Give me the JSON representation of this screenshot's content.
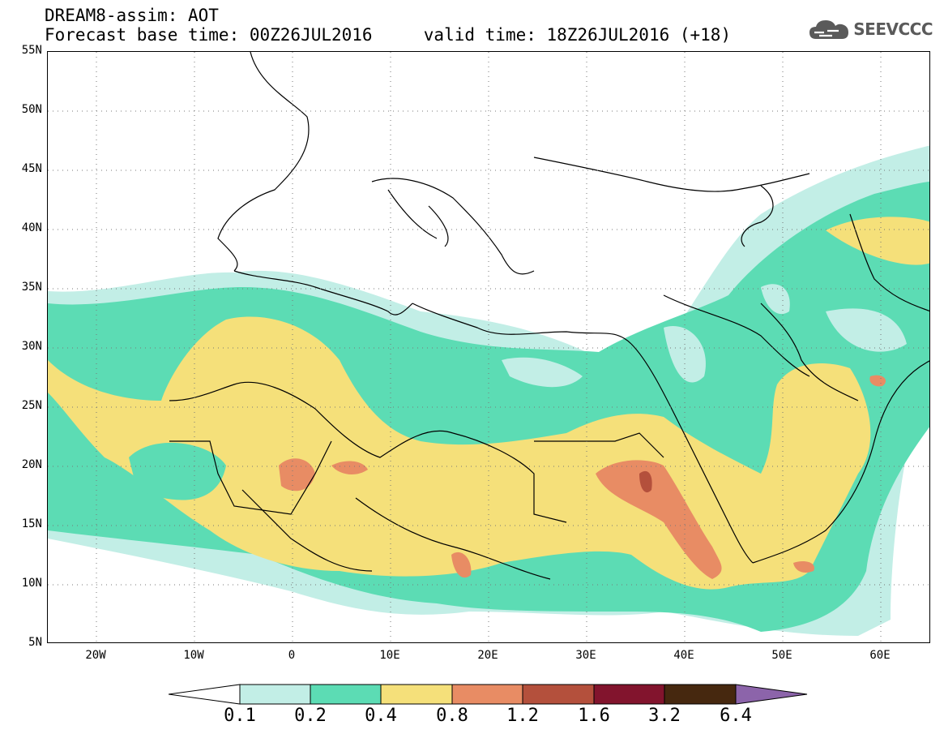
{
  "header": {
    "title_line1": "DREAM8-assim: AOT",
    "title_line2": "Forecast base time: 00Z26JUL2016     valid time: 18Z26JUL2016 (+18)",
    "brand": "SEEVCCC"
  },
  "map": {
    "lon_range": [
      -25,
      65
    ],
    "lat_range": [
      5,
      55
    ],
    "lat_labels": [
      "55N",
      "50N",
      "45N",
      "40N",
      "35N",
      "30N",
      "25N",
      "20N",
      "15N",
      "10N",
      "5N"
    ],
    "lon_labels": [
      "20W",
      "10W",
      "0",
      "10E",
      "20E",
      "30E",
      "40E",
      "50E",
      "60E"
    ],
    "grid": "dotted"
  },
  "colorbar": {
    "labels": [
      "0.1",
      "0.2",
      "0.4",
      "0.8",
      "1.2",
      "1.6",
      "3.2",
      "6.4"
    ],
    "colors": [
      "#ffffff",
      "#c2eee6",
      "#5cdcb4",
      "#f5e07a",
      "#e88c64",
      "#b4503c",
      "#82142d",
      "#46280f",
      "#8c64aa"
    ]
  },
  "icons": {
    "brand_logo": "cloud-icon"
  }
}
